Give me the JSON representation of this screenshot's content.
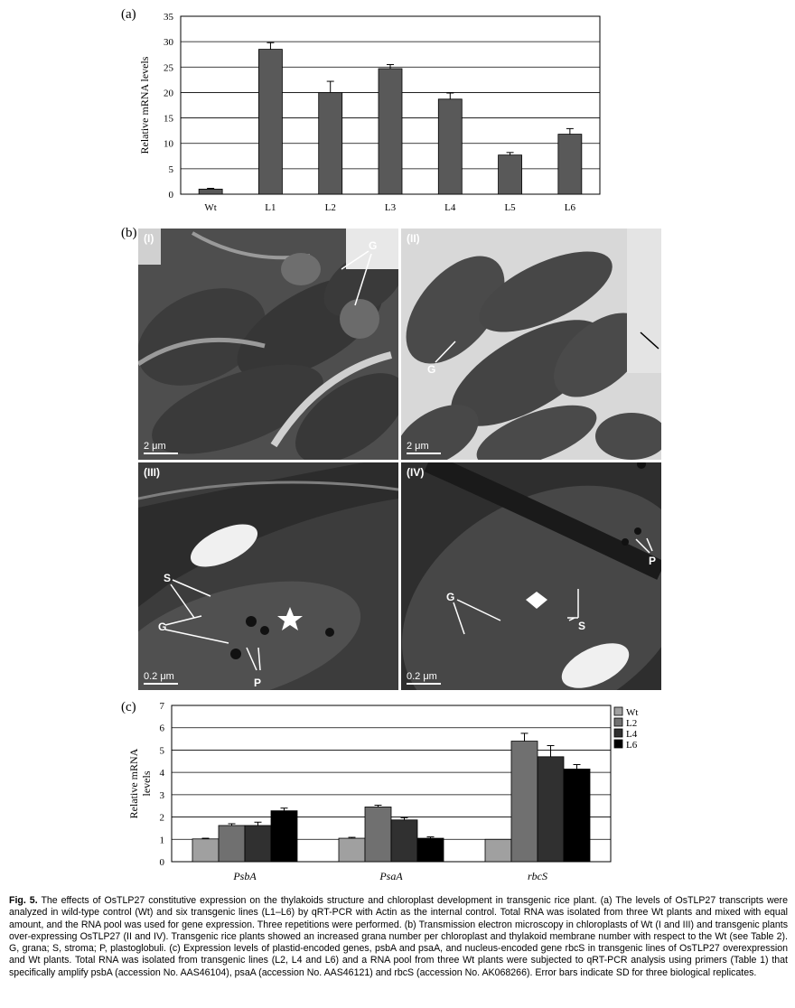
{
  "figure": {
    "panel_labels": [
      "(a)",
      "(b)",
      "(c)"
    ]
  },
  "chart_data": [
    {
      "type": "bar",
      "ylabel": "Relative mRNA levels",
      "xlabel": "",
      "categories": [
        "Wt",
        "L1",
        "L2",
        "L3",
        "L4",
        "L5",
        "L6"
      ],
      "values": [
        1.0,
        28.5,
        20.0,
        24.7,
        18.7,
        7.7,
        11.8
      ],
      "errors": [
        0.15,
        1.3,
        2.2,
        0.8,
        1.2,
        0.5,
        1.1
      ],
      "ylim": [
        0,
        35
      ],
      "yticks": [
        0,
        5,
        10,
        15,
        20,
        25,
        30,
        35
      ],
      "grid": true,
      "bar_color": "#595959"
    },
    {
      "type": "bar",
      "ylabel": "Relative mRNA levels",
      "xlabel": "",
      "categories": [
        "PsbA",
        "PsaA",
        "rbcS"
      ],
      "series": [
        {
          "name": "Wt",
          "values": [
            1.02,
            1.05,
            1.0
          ],
          "errors": [
            0.03,
            0.04,
            0.0
          ],
          "color": "#a0a0a0"
        },
        {
          "name": "L2",
          "values": [
            1.62,
            2.45,
            5.4
          ],
          "errors": [
            0.08,
            0.08,
            0.35
          ],
          "color": "#707070"
        },
        {
          "name": "L4",
          "values": [
            1.62,
            1.87,
            4.7
          ],
          "errors": [
            0.15,
            0.1,
            0.5
          ],
          "color": "#303030"
        },
        {
          "name": "L6",
          "values": [
            2.28,
            1.05,
            4.15
          ],
          "errors": [
            0.12,
            0.06,
            0.2
          ],
          "color": "#000000"
        }
      ],
      "ylim": [
        0,
        7
      ],
      "yticks": [
        0,
        1,
        2,
        3,
        4,
        5,
        6,
        7
      ],
      "grid": true,
      "legend": "top-right"
    }
  ],
  "micrographs": {
    "p1": {
      "label": "(I)",
      "scale": "2 μm",
      "annotations": [
        "G"
      ]
    },
    "p2": {
      "label": "(II)",
      "scale": "2 μm",
      "annotations": [
        "G",
        "G"
      ]
    },
    "p3": {
      "label": "(III)",
      "scale": "0.2 μm",
      "annotations": [
        "S",
        "G",
        "P"
      ]
    },
    "p4": {
      "label": "(IV)",
      "scale": "0.2 μm",
      "annotations": [
        "G",
        "P",
        "S"
      ]
    }
  },
  "caption": {
    "fig": "Fig. 5.",
    "text": "The effects of OsTLP27 constitutive expression on the thylakoids structure and chloroplast development in transgenic rice plant. (a) The levels of OsTLP27 transcripts were analyzed in wild-type control (Wt) and six transgenic lines (L1–L6) by qRT-PCR with Actin as the internal control. Total RNA was isolated from three Wt plants and mixed with equal amount, and the RNA pool was used for gene expression. Three repetitions were performed. (b) Transmission electron microscopy in chloroplasts of Wt (I and III) and transgenic plants over-expressing OsTLP27 (II and IV). Transgenic rice plants showed an increased grana number per chloroplast and thylakoid membrane number with respect to the Wt (see Table 2). G, grana; S, stroma; P, plastoglobuli. (c) Expression levels of plastid-encoded genes, psbA and psaA, and nucleus-encoded gene rbcS in transgenic lines of OsTLP27 overexpression and Wt plants. Total RNA was isolated from transgenic lines (L2, L4 and L6) and a RNA pool from three Wt plants were subjected to qRT-PCR analysis using primers (Table 1) that specifically amplify psbA (accession No. AAS46104), psaA (accession No. AAS46121) and rbcS (accession No. AK068266). Error bars indicate SD for three biological replicates."
  }
}
